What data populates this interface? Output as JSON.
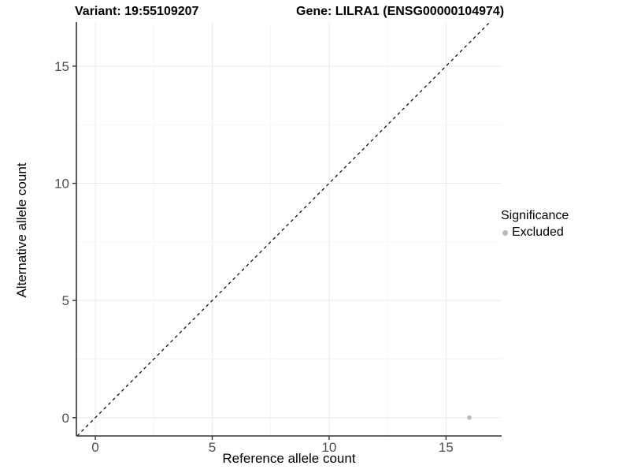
{
  "header": {
    "title_left": "Variant: 19:55109207",
    "title_right": "Gene: LILRA1 (ENSG00000104974)"
  },
  "chart_data": {
    "type": "scatter",
    "xlabel": "Reference allele count",
    "ylabel": "Alternative allele count",
    "xlim": [
      -0.81,
      17.38
    ],
    "ylim": [
      -0.78,
      16.88
    ],
    "x_ticks": [
      0,
      5,
      10,
      15
    ],
    "y_ticks": [
      0,
      5,
      10,
      15
    ],
    "x_minor_ticks": [
      2.5,
      7.5,
      12.5
    ],
    "y_minor_ticks": [
      2.5,
      7.5,
      12.5
    ],
    "grid": "major+minor",
    "legend_position": "right",
    "series": [
      {
        "name": "Excluded",
        "color": "#b9b9b9",
        "points": [
          {
            "x": 16,
            "y": 0
          }
        ]
      }
    ],
    "identity_line": {
      "slope": 1,
      "intercept": 0,
      "style": "dashed",
      "color": "#000000"
    },
    "point_radius": 2.8
  },
  "legend": {
    "title": "Significance",
    "items": [
      {
        "label": "Excluded",
        "color": "#b9b9b9"
      }
    ]
  },
  "style_colors": {
    "grid_major": "#ebebeb",
    "grid_minor": "#f5f5f5",
    "axis_line": "#333333",
    "tick_mark": "#333333",
    "tick_label": "#4d4d4d"
  }
}
